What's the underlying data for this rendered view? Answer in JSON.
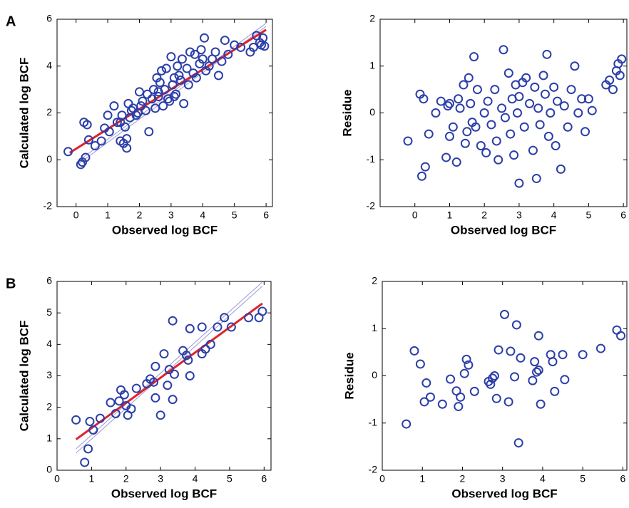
{
  "chart_data": [
    {
      "type": "scatter",
      "panel_label": "A",
      "xlabel": "Observed log BCF",
      "ylabel": "Calculated log BCF",
      "xlim": [
        -0.6,
        6.2
      ],
      "ylim": [
        -2,
        6
      ],
      "xticks": [
        0,
        1,
        2,
        3,
        4,
        5,
        6
      ],
      "yticks": [
        -2,
        0,
        2,
        4,
        6
      ],
      "marker_color": "#2b3ea8",
      "x": [
        -0.25,
        0.15,
        0.2,
        0.25,
        0.3,
        0.35,
        0.4,
        0.6,
        0.8,
        0.9,
        1.0,
        1.05,
        1.2,
        1.3,
        1.4,
        1.45,
        1.5,
        1.55,
        1.6,
        1.65,
        1.7,
        1.75,
        1.8,
        1.9,
        1.95,
        2.0,
        2.05,
        2.1,
        2.2,
        2.25,
        2.3,
        2.4,
        2.45,
        2.5,
        2.55,
        2.6,
        2.65,
        2.7,
        2.75,
        2.8,
        2.85,
        2.9,
        2.95,
        3.0,
        3.05,
        3.1,
        3.15,
        3.2,
        3.25,
        3.3,
        3.35,
        3.4,
        3.5,
        3.55,
        3.6,
        3.7,
        3.75,
        3.8,
        3.9,
        3.95,
        4.0,
        4.05,
        4.1,
        4.2,
        4.3,
        4.4,
        4.5,
        4.6,
        4.7,
        4.8,
        5.0,
        5.2,
        5.5,
        5.6,
        5.7,
        5.8,
        5.85,
        5.9,
        5.95,
        1.4,
        1.6,
        2.6,
        3.1
      ],
      "y": [
        0.35,
        -0.2,
        -0.1,
        1.6,
        0.1,
        1.5,
        0.85,
        0.6,
        0.8,
        1.35,
        1.9,
        1.2,
        2.3,
        1.6,
        0.8,
        1.9,
        0.7,
        1.4,
        0.5,
        2.4,
        1.8,
        2.1,
        2.2,
        1.9,
        2.0,
        2.9,
        2.3,
        2.5,
        2.1,
        2.8,
        1.2,
        2.6,
        3.0,
        2.2,
        3.5,
        2.7,
        3.3,
        3.8,
        2.3,
        3.0,
        3.9,
        2.6,
        2.5,
        4.4,
        3.2,
        3.5,
        2.8,
        4.0,
        3.6,
        3.4,
        4.3,
        2.4,
        3.9,
        3.2,
        4.6,
        3.7,
        4.5,
        3.5,
        4.1,
        4.7,
        4.3,
        5.2,
        3.8,
        4.0,
        4.3,
        4.6,
        3.6,
        4.2,
        5.1,
        4.5,
        4.9,
        4.8,
        4.6,
        4.8,
        5.3,
        5.0,
        4.9,
        5.2,
        4.85,
        1.6,
        0.9,
        2.9,
        2.7
      ],
      "lines": [
        {
          "x": [
            0.1,
            6
          ],
          "y": [
            -0.15,
            5.7
          ],
          "color": "#9a9ad8",
          "width": 1
        },
        {
          "x": [
            0.1,
            6
          ],
          "y": [
            -0.02,
            5.83
          ],
          "color": "#9a9ad8",
          "width": 1
        },
        {
          "x": [
            -0.2,
            6
          ],
          "y": [
            0.3,
            5.55
          ],
          "color": "#e0222a",
          "width": 3
        }
      ]
    },
    {
      "type": "scatter",
      "xlabel": "Observed log BCF",
      "ylabel": "Residue",
      "xlim": [
        -1,
        6.1
      ],
      "ylim": [
        -2,
        2
      ],
      "xticks": [
        0,
        1,
        2,
        3,
        4,
        5,
        6
      ],
      "yticks": [
        -2,
        -1,
        0,
        1,
        2
      ],
      "marker_color": "#2b3ea8",
      "x": [
        -0.2,
        0.15,
        0.2,
        0.25,
        0.3,
        0.4,
        0.6,
        0.75,
        0.9,
        0.95,
        1.0,
        1.0,
        1.1,
        1.2,
        1.25,
        1.3,
        1.4,
        1.45,
        1.5,
        1.55,
        1.6,
        1.65,
        1.7,
        1.75,
        1.8,
        1.9,
        2.0,
        2.05,
        2.1,
        2.2,
        2.3,
        2.35,
        2.4,
        2.5,
        2.55,
        2.6,
        2.7,
        2.75,
        2.8,
        2.85,
        2.9,
        2.95,
        3.0,
        3.0,
        3.1,
        3.15,
        3.2,
        3.3,
        3.4,
        3.45,
        3.5,
        3.55,
        3.6,
        3.7,
        3.75,
        3.8,
        3.85,
        3.9,
        4.0,
        4.05,
        4.1,
        4.2,
        4.3,
        4.4,
        4.5,
        4.6,
        4.7,
        4.8,
        4.9,
        5.0,
        5.1,
        5.5,
        5.6,
        5.7,
        5.8,
        5.85,
        5.9,
        5.95
      ],
      "y": [
        -0.6,
        0.4,
        -1.35,
        0.3,
        -1.15,
        -0.45,
        0.0,
        0.25,
        -0.95,
        0.15,
        -0.5,
        0.2,
        -0.3,
        -1.05,
        0.3,
        0.1,
        0.6,
        -0.65,
        -0.4,
        0.75,
        0.2,
        -0.2,
        1.2,
        -0.3,
        0.5,
        -0.7,
        0.0,
        -0.85,
        0.25,
        -0.25,
        0.5,
        -0.6,
        -1.0,
        0.1,
        1.35,
        -0.1,
        0.85,
        -0.45,
        0.3,
        -0.9,
        0.6,
        0.0,
        -1.5,
        0.35,
        0.65,
        -0.3,
        0.75,
        0.2,
        -0.8,
        0.55,
        -1.4,
        0.1,
        -0.25,
        0.8,
        0.4,
        1.25,
        -0.5,
        0.0,
        0.55,
        -0.7,
        0.25,
        -1.2,
        0.15,
        -0.3,
        0.5,
        1.0,
        0.0,
        0.3,
        -0.4,
        0.3,
        0.05,
        0.6,
        0.7,
        0.5,
        0.9,
        1.05,
        0.8,
        1.15
      ],
      "lines": []
    },
    {
      "type": "scatter",
      "panel_label": "B",
      "xlabel": "Observed log BCF",
      "ylabel": "Calculated log BCF",
      "xlim": [
        0,
        6.2
      ],
      "ylim": [
        0,
        6
      ],
      "xticks": [
        0,
        1,
        2,
        3,
        4,
        5,
        6
      ],
      "yticks": [
        0,
        1,
        2,
        3,
        4,
        5,
        6
      ],
      "marker_color": "#2b3ea8",
      "x": [
        0.55,
        0.8,
        0.9,
        0.95,
        1.05,
        1.25,
        1.55,
        1.7,
        1.8,
        1.85,
        1.95,
        2.0,
        2.05,
        2.15,
        2.3,
        2.6,
        2.7,
        2.8,
        2.85,
        2.85,
        3.0,
        3.1,
        3.2,
        3.25,
        3.35,
        3.35,
        3.4,
        3.65,
        3.75,
        3.8,
        3.85,
        3.85,
        4.2,
        4.2,
        4.3,
        4.45,
        4.65,
        4.85,
        5.05,
        5.55,
        5.85,
        5.95
      ],
      "y": [
        1.6,
        0.25,
        0.68,
        1.55,
        1.28,
        1.65,
        2.15,
        1.8,
        2.2,
        2.55,
        2.4,
        2.05,
        1.75,
        1.95,
        2.6,
        2.75,
        2.9,
        2.8,
        3.3,
        2.3,
        1.75,
        3.7,
        2.7,
        3.2,
        4.75,
        2.25,
        3.05,
        3.8,
        3.65,
        3.5,
        3.0,
        4.5,
        4.55,
        3.7,
        3.85,
        4.0,
        4.55,
        4.85,
        4.55,
        4.85,
        4.85,
        5.05
      ],
      "lines": [
        {
          "x": [
            0.55,
            5.95
          ],
          "y": [
            0.55,
            5.85
          ],
          "color": "#9a9ad8",
          "width": 1
        },
        {
          "x": [
            0.55,
            5.95
          ],
          "y": [
            0.68,
            5.98
          ],
          "color": "#9a9ad8",
          "width": 1
        },
        {
          "x": [
            0.55,
            5.95
          ],
          "y": [
            0.98,
            5.3
          ],
          "color": "#e0222a",
          "width": 3
        }
      ]
    },
    {
      "type": "scatter",
      "xlabel": "Observed log BCF",
      "ylabel": "Residue",
      "xlim": [
        0,
        6.1
      ],
      "ylim": [
        -2,
        2
      ],
      "xticks": [
        0,
        1,
        2,
        3,
        4,
        5,
        6
      ],
      "yticks": [
        -2,
        -1,
        0,
        1,
        2
      ],
      "marker_color": "#2b3ea8",
      "x": [
        0.6,
        0.8,
        0.95,
        1.05,
        1.1,
        1.2,
        1.5,
        1.7,
        1.85,
        1.95,
        1.9,
        2.05,
        2.1,
        2.15,
        2.3,
        2.65,
        2.7,
        2.75,
        2.8,
        2.85,
        2.9,
        3.05,
        3.15,
        3.2,
        3.3,
        3.35,
        3.4,
        3.45,
        3.75,
        3.8,
        3.85,
        3.9,
        3.95,
        3.9,
        4.2,
        4.25,
        4.3,
        4.5,
        4.55,
        5.0,
        5.45,
        5.85,
        5.95
      ],
      "y": [
        -1.02,
        0.53,
        0.25,
        -0.55,
        -0.15,
        -0.45,
        -0.6,
        -0.07,
        -0.32,
        -0.45,
        -0.65,
        0.05,
        0.35,
        0.23,
        -0.33,
        -0.12,
        -0.18,
        -0.05,
        0.0,
        -0.48,
        0.55,
        1.3,
        -0.55,
        0.52,
        -0.02,
        1.08,
        -1.42,
        0.38,
        -0.1,
        0.3,
        0.08,
        0.85,
        -0.6,
        0.12,
        0.45,
        0.3,
        -0.33,
        0.45,
        -0.08,
        0.45,
        0.58,
        0.97,
        0.85
      ],
      "lines": []
    }
  ]
}
